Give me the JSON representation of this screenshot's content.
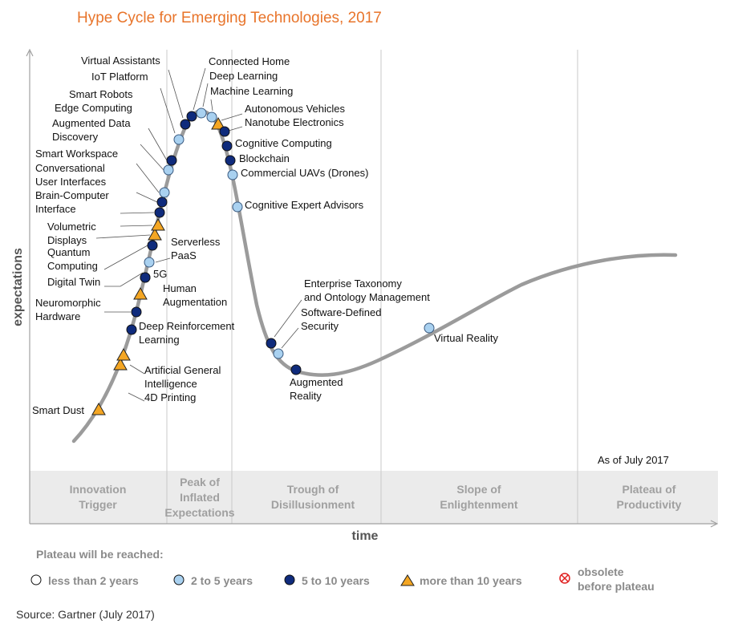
{
  "title": "Hype Cycle for Emerging Technologies, 2017",
  "source": "Source: Gartner (July 2017)",
  "colors": {
    "title": "#e8742a",
    "curve": "#9b9b9b",
    "phase_band": "#ebebeb",
    "phase_text": "#a0a0a0",
    "legend_title": "#8a8a8a",
    "lt2": "#ffffff",
    "y2to5": "#a9d1f0",
    "y5to10": "#0f2b7c",
    "gt10": "#f4a623",
    "obsolete": "#e02020"
  },
  "chart_data": {
    "type": "scatter",
    "title": "Hype Cycle for Emerging Technologies, 2017",
    "xlabel": "time",
    "ylabel": "expectations",
    "as_of": "As of July 2017",
    "phases": [
      [
        "Innovation",
        "Trigger"
      ],
      [
        "Peak of",
        "Inflated",
        "Expectations"
      ],
      [
        "Trough of",
        "Disillusionment"
      ],
      [
        "Slope of",
        "Enlightenment"
      ],
      [
        "Plateau of",
        "Productivity"
      ]
    ],
    "legend": {
      "title": "Plateau will be reached:",
      "items": [
        {
          "key": "lt2",
          "label": "less than 2 years"
        },
        {
          "key": "y2to5",
          "label": "2 to 5 years"
        },
        {
          "key": "y5to10",
          "label": "5 to 10 years"
        },
        {
          "key": "gt10",
          "label": "more than 10 years"
        },
        {
          "key": "obsolete",
          "label": [
            "obsolete",
            "before plateau"
          ]
        }
      ]
    },
    "technologies": [
      {
        "name": [
          "Smart Dust"
        ],
        "category": "gt10",
        "phase": "Innovation Trigger"
      },
      {
        "name": [
          "4D Printing"
        ],
        "category": "gt10",
        "phase": "Innovation Trigger"
      },
      {
        "name": [
          "Artificial General",
          "Intelligence"
        ],
        "category": "gt10",
        "phase": "Innovation Trigger"
      },
      {
        "name": [
          "Deep Reinforcement",
          "Learning"
        ],
        "category": "y5to10",
        "phase": "Innovation Trigger"
      },
      {
        "name": [
          "Neuromorphic",
          "Hardware"
        ],
        "category": "y5to10",
        "phase": "Innovation Trigger"
      },
      {
        "name": [
          "Human",
          "Augmentation"
        ],
        "category": "gt10",
        "phase": "Innovation Trigger"
      },
      {
        "name": [
          "5G"
        ],
        "category": "y5to10",
        "phase": "Innovation Trigger"
      },
      {
        "name": [
          "Digital Twin"
        ],
        "category": "y2to5",
        "phase": "Innovation Trigger"
      },
      {
        "name": [
          "Serverless",
          "PaaS"
        ],
        "category": "y2to5",
        "phase": "Innovation Trigger"
      },
      {
        "name": [
          "Quantum",
          "Computing"
        ],
        "category": "y5to10",
        "phase": "Innovation Trigger"
      },
      {
        "name": [
          "Volumetric",
          "Displays"
        ],
        "category": "gt10",
        "phase": "Innovation Trigger"
      },
      {
        "name": [
          "Brain-Computer",
          "Interface"
        ],
        "category": "gt10",
        "phase": "Innovation Trigger"
      },
      {
        "name": [
          "Conversational",
          "User Interfaces"
        ],
        "category": "y5to10",
        "phase": "Innovation Trigger"
      },
      {
        "name": [
          "Smart Workspace"
        ],
        "category": "y5to10",
        "phase": "Innovation Trigger"
      },
      {
        "name": [
          "Augmented Data",
          "Discovery"
        ],
        "category": "y2to5",
        "phase": "Innovation Trigger"
      },
      {
        "name": [
          "Edge Computing"
        ],
        "category": "y2to5",
        "phase": "Innovation Trigger"
      },
      {
        "name": [
          "Smart Robots"
        ],
        "category": "y5to10",
        "phase": "Peak of Inflated Expectations"
      },
      {
        "name": [
          "IoT Platform"
        ],
        "category": "y2to5",
        "phase": "Peak of Inflated Expectations"
      },
      {
        "name": [
          "Virtual Assistants"
        ],
        "category": "y5to10",
        "phase": "Peak of Inflated Expectations"
      },
      {
        "name": [
          "Connected Home"
        ],
        "category": "y5to10",
        "phase": "Peak of Inflated Expectations"
      },
      {
        "name": [
          "Deep Learning"
        ],
        "category": "y2to5",
        "phase": "Peak of Inflated Expectations"
      },
      {
        "name": [
          "Machine Learning"
        ],
        "category": "y2to5",
        "phase": "Peak of Inflated Expectations"
      },
      {
        "name": [
          "Autonomous Vehicles"
        ],
        "category": "gt10",
        "phase": "Peak of Inflated Expectations"
      },
      {
        "name": [
          "Nanotube Electronics"
        ],
        "category": "y5to10",
        "phase": "Peak of Inflated Expectations"
      },
      {
        "name": [
          "Cognitive Computing"
        ],
        "category": "y5to10",
        "phase": "Peak of Inflated Expectations"
      },
      {
        "name": [
          "Blockchain"
        ],
        "category": "y5to10",
        "phase": "Peak of Inflated Expectations"
      },
      {
        "name": [
          "Commercial UAVs (Drones)"
        ],
        "category": "y2to5",
        "phase": "Peak of Inflated Expectations"
      },
      {
        "name": [
          "Cognitive Expert Advisors"
        ],
        "category": "y2to5",
        "phase": "Peak of Inflated Expectations"
      },
      {
        "name": [
          "Enterprise Taxonomy",
          "and Ontology Management"
        ],
        "category": "y5to10",
        "phase": "Trough of Disillusionment"
      },
      {
        "name": [
          "Software-Defined",
          "Security"
        ],
        "category": "y2to5",
        "phase": "Trough of Disillusionment"
      },
      {
        "name": [
          "Augmented",
          "Reality"
        ],
        "category": "y5to10",
        "phase": "Trough of Disillusionment"
      },
      {
        "name": [
          "Virtual Reality"
        ],
        "category": "y2to5",
        "phase": "Slope of Enlightenment"
      }
    ]
  }
}
